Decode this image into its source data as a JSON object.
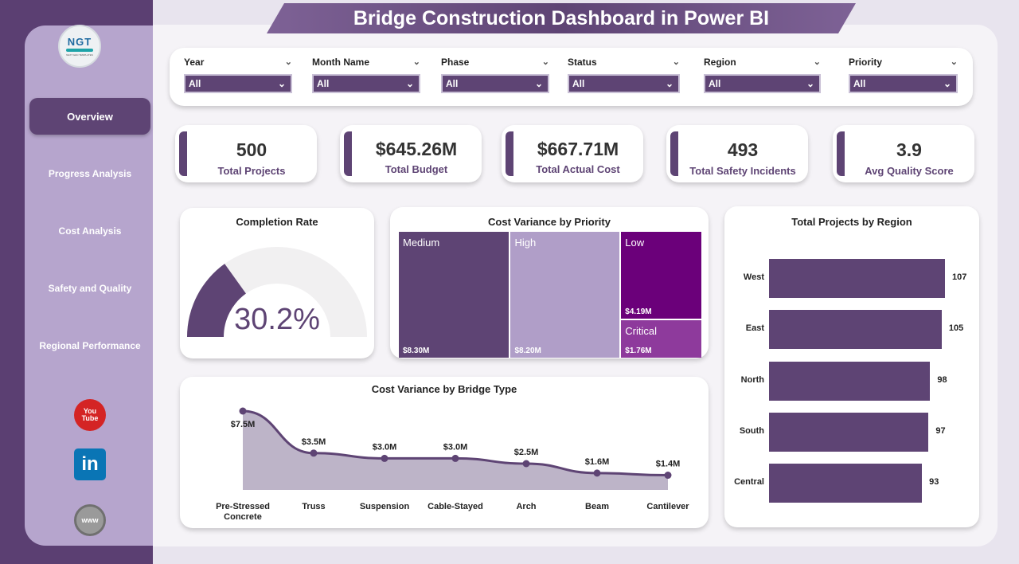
{
  "app": {
    "title": "Bridge Construction Dashboard in Power BI"
  },
  "logo": {
    "text": "NGT",
    "subtext": "NEXT GEN TEMPLATES"
  },
  "nav": {
    "items": [
      {
        "label": "Overview",
        "active": true
      },
      {
        "label": "Progress Analysis",
        "active": false
      },
      {
        "label": "Cost Analysis",
        "active": false
      },
      {
        "label": "Safety and Quality",
        "active": false
      },
      {
        "label": "Regional Performance",
        "active": false
      }
    ]
  },
  "social": {
    "youtube_line1": "You",
    "youtube_line2": "Tube",
    "linkedin": "in",
    "website": "www"
  },
  "filters": [
    {
      "label": "Year",
      "value": "All"
    },
    {
      "label": "Month Name",
      "value": "All"
    },
    {
      "label": "Phase",
      "value": "All"
    },
    {
      "label": "Status",
      "value": "All"
    },
    {
      "label": "Region",
      "value": "All"
    },
    {
      "label": "Priority",
      "value": "All"
    }
  ],
  "kpis": [
    {
      "value": "500",
      "label": "Total Projects"
    },
    {
      "value": "$645.26M",
      "label": "Total Budget"
    },
    {
      "value": "$667.71M",
      "label": "Total Actual Cost"
    },
    {
      "value": "493",
      "label": "Total Safety Incidents"
    },
    {
      "value": "3.9",
      "label": "Avg Quality Score"
    }
  ],
  "colors": {
    "primary": "#5e4474",
    "light": "#b6a5cd",
    "dark": "#5b3f72",
    "treemap_low": "#6b007a",
    "treemap_critical": "#8e3a9c",
    "treemap_high": "#b09ec8"
  },
  "chart_data": [
    {
      "type": "gauge",
      "title": "Completion Rate",
      "value": 30.2,
      "value_label": "30.2%",
      "range": [
        0,
        100
      ]
    },
    {
      "type": "treemap",
      "title": "Cost Variance by Priority",
      "categories": [
        "Medium",
        "High",
        "Low",
        "Critical"
      ],
      "values": [
        8.3,
        8.2,
        4.19,
        1.76
      ],
      "value_labels": [
        "$8.30M",
        "$8.20M",
        "$4.19M",
        "$1.76M"
      ]
    },
    {
      "type": "bar",
      "title": "Total Projects by Region",
      "categories": [
        "West",
        "East",
        "North",
        "South",
        "Central"
      ],
      "values": [
        107,
        105,
        98,
        97,
        93
      ],
      "orientation": "horizontal"
    },
    {
      "type": "area",
      "title": "Cost Variance by Bridge Type",
      "categories": [
        "Pre-Stressed Concrete",
        "Truss",
        "Suspension",
        "Cable-Stayed",
        "Arch",
        "Beam",
        "Cantilever"
      ],
      "values": [
        7.5,
        3.5,
        3.0,
        3.0,
        2.5,
        1.6,
        1.4
      ],
      "value_labels": [
        "$7.5M",
        "$3.5M",
        "$3.0M",
        "$3.0M",
        "$2.5M",
        "$1.6M",
        "$1.4M"
      ]
    }
  ]
}
